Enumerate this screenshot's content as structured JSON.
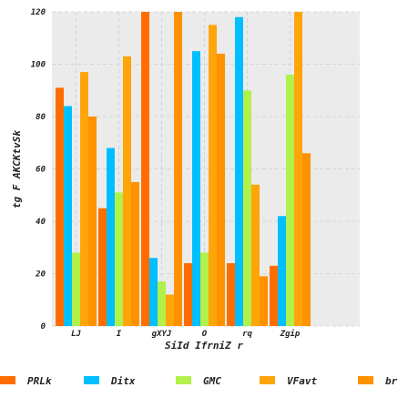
{
  "chart_data": {
    "type": "bar",
    "title": "",
    "xlabel": "SiId IfrniZ r",
    "ylabel": "tg F AKCKtvSk",
    "categories": [
      "LJ",
      "I",
      "gXYJ",
      "O",
      "rq",
      "Zgip"
    ],
    "ylim": [
      0,
      120
    ],
    "yticks": [
      0,
      20,
      40,
      60,
      80,
      100,
      120
    ],
    "grid": true,
    "legend_position": "bottom",
    "series": [
      {
        "name": "PRLk",
        "color": "#ff6d00",
        "values": [
          91,
          45,
          120,
          24,
          24,
          23
        ]
      },
      {
        "name": "Ditx",
        "color": "#00bfff",
        "values": [
          84,
          68,
          26,
          105,
          118,
          42
        ]
      },
      {
        "name": "GMC",
        "color": "#b2f04a",
        "values": [
          28,
          51,
          17,
          28,
          90,
          96
        ]
      },
      {
        "name": "VFavt",
        "color": "#ffa50a",
        "values": [
          97,
          103,
          12,
          115,
          54,
          120
        ]
      },
      {
        "name": "br",
        "color": "#ff9200",
        "values": [
          80,
          55,
          120,
          104,
          19,
          66
        ]
      }
    ]
  }
}
